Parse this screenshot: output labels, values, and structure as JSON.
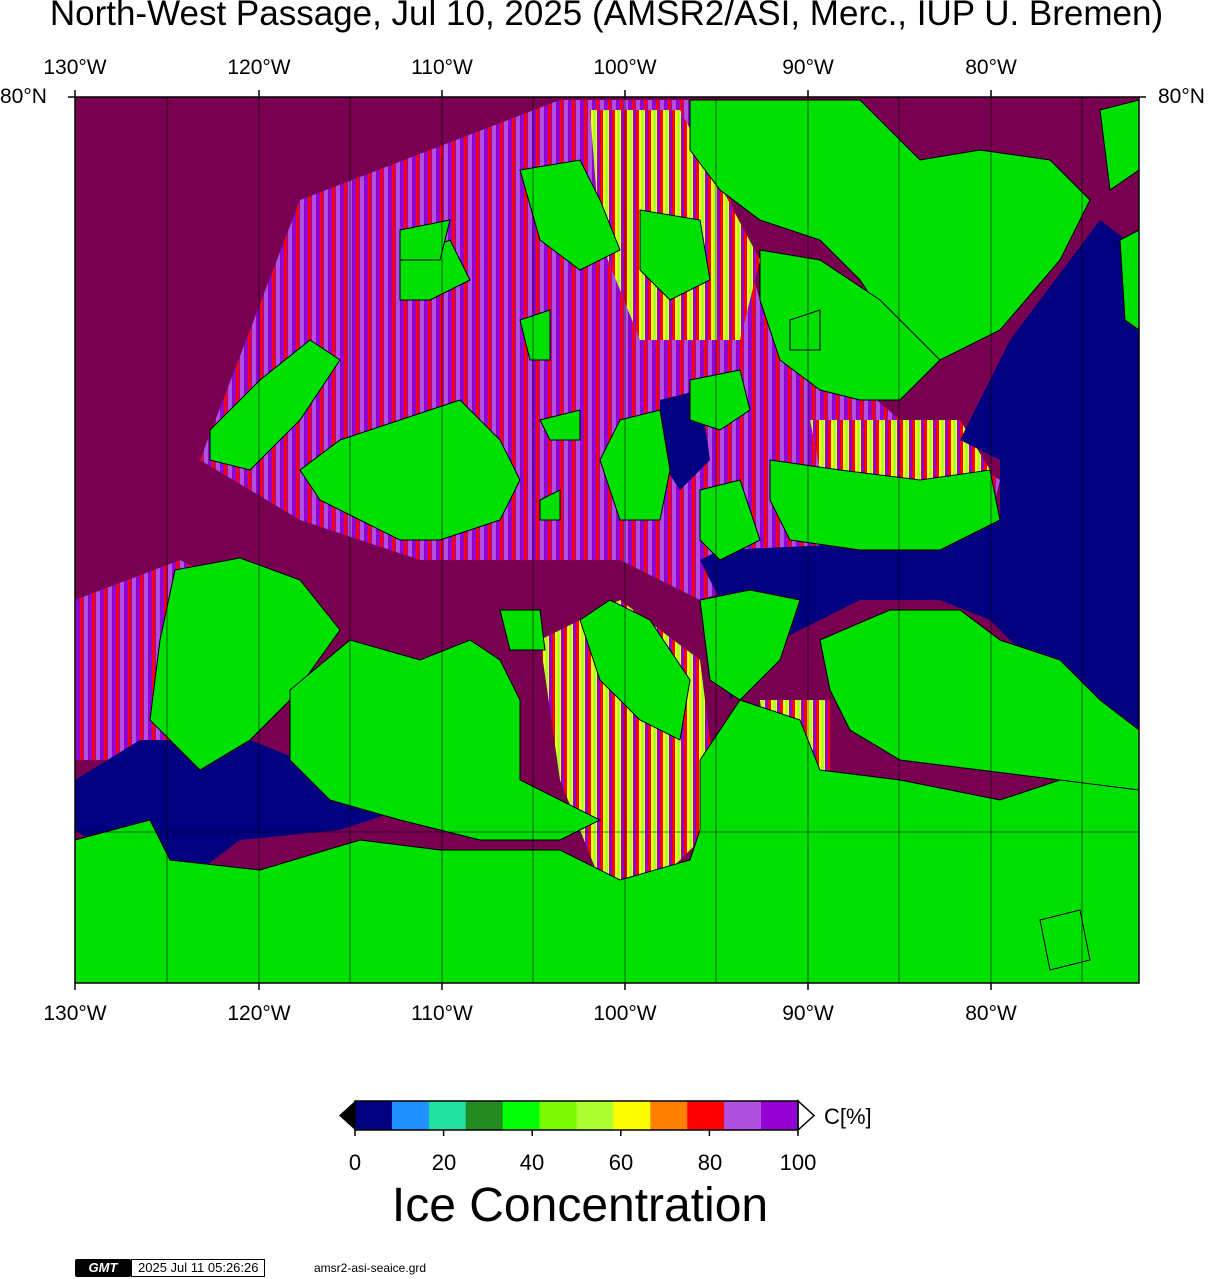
{
  "title": "North-West Passage, Jul 10, 2025 (AMSR2/ASI, Merc., IUP U. Bremen)",
  "lon_labels": [
    "130°W",
    "120°W",
    "110°W",
    "100°W",
    "90°W",
    "80°W"
  ],
  "lat_label": "80°N",
  "colorbar": {
    "ticks": [
      "0",
      "20",
      "40",
      "60",
      "80",
      "100"
    ],
    "unit": "C[%]",
    "title": "Ice Concentration",
    "colors": [
      "#000080",
      "#1e90ff",
      "#20e0a0",
      "#228b22",
      "#00ff00",
      "#7cfc00",
      "#adff2f",
      "#ffff00",
      "#ff7f00",
      "#ff0000",
      "#b050e0",
      "#9400d3"
    ]
  },
  "colors": {
    "land": "#00e000",
    "open_water": "#000080",
    "full_ice": "#780050",
    "ice_purple": "#9400d3"
  },
  "footer": {
    "logo": "GMT",
    "timestamp": "2025 Jul 11 05:26:26",
    "grid_file": "amsr2-asi-seaice.grd"
  }
}
